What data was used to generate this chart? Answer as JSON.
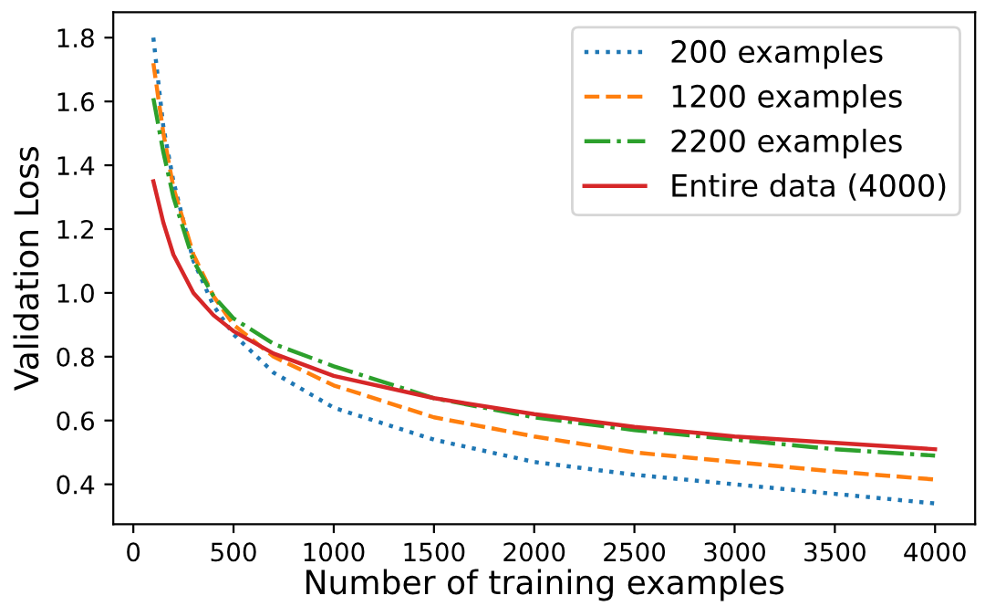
{
  "chart_data": {
    "type": "line",
    "xlabel": "Number of training examples",
    "ylabel": "Validation Loss",
    "x": [
      100,
      150,
      200,
      300,
      400,
      500,
      700,
      1000,
      1500,
      2000,
      2500,
      3000,
      3500,
      4000
    ],
    "series": [
      {
        "name": "200 examples",
        "color": "#1f77b4",
        "line_style": "dotted",
        "values": [
          1.8,
          1.52,
          1.35,
          1.1,
          0.96,
          0.87,
          0.75,
          0.64,
          0.54,
          0.47,
          0.43,
          0.4,
          0.37,
          0.34
        ]
      },
      {
        "name": "1200 examples",
        "color": "#ff7f0e",
        "line_style": "dashed",
        "values": [
          1.72,
          1.5,
          1.33,
          1.12,
          0.99,
          0.9,
          0.8,
          0.71,
          0.61,
          0.55,
          0.5,
          0.47,
          0.44,
          0.415
        ]
      },
      {
        "name": "2200 examples",
        "color": "#2ca02c",
        "line_style": "dashdot",
        "values": [
          1.61,
          1.44,
          1.3,
          1.1,
          0.99,
          0.92,
          0.84,
          0.77,
          0.67,
          0.61,
          0.57,
          0.54,
          0.51,
          0.49
        ]
      },
      {
        "name": "Entire data (4000)",
        "color": "#d62728",
        "line_style": "solid",
        "values": [
          1.35,
          1.22,
          1.12,
          1.0,
          0.93,
          0.88,
          0.81,
          0.74,
          0.67,
          0.62,
          0.58,
          0.55,
          0.53,
          0.51
        ]
      }
    ],
    "xlim": [
      -100,
      4200
    ],
    "ylim": [
      0.275,
      1.88
    ],
    "xticks": [
      0,
      500,
      1000,
      1500,
      2000,
      2500,
      3000,
      3500,
      4000
    ],
    "yticks": [
      0.4,
      0.6,
      0.8,
      {
        "value": 1,
        "label": "1.0"
      },
      1.2,
      1.4,
      1.6,
      1.8
    ],
    "legend": "top right",
    "grid": false
  }
}
